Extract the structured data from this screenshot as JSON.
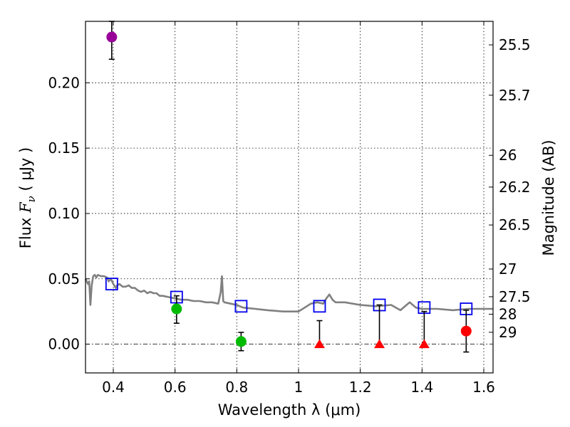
{
  "chart_data": {
    "type": "scatter",
    "xlabel": "Wavelength  λ (μm)",
    "ylabel_prefix": "Flux  ",
    "ylabel_symbol": "F",
    "ylabel_subscript": "ν",
    "ylabel_unit": "  ( μJy )",
    "y2label": "Magnitude (AB)",
    "xlim": [
      0.31,
      1.63
    ],
    "ylim": [
      -0.022,
      0.247
    ],
    "xticks": [
      0.4,
      0.6,
      0.8,
      1.0,
      1.2,
      1.4,
      1.6
    ],
    "xtick_labels": [
      "0.4",
      "0.6",
      "0.8",
      "1",
      "1.2",
      "1.4",
      "1.6"
    ],
    "yticks": [
      0.0,
      0.05,
      0.1,
      0.15,
      0.2
    ],
    "ytick_labels": [
      "0.00",
      "0.05",
      "0.10",
      "0.15",
      "0.20"
    ],
    "magnitude_ticks": [
      {
        "label": "25.5",
        "flux": 0.229
      },
      {
        "label": "25.7",
        "flux": 0.1905
      },
      {
        "label": "26",
        "flux": 0.1445
      },
      {
        "label": "26.2",
        "flux": 0.1202
      },
      {
        "label": "26.5",
        "flux": 0.0912
      },
      {
        "label": "27",
        "flux": 0.0575
      },
      {
        "label": "27.5",
        "flux": 0.0363
      },
      {
        "label": "28",
        "flux": 0.0229
      },
      {
        "label": "29",
        "flux": 0.0091
      }
    ],
    "grid": true,
    "series": [
      {
        "name": "model_spectrum",
        "kind": "line",
        "color": "#808080",
        "x": [
          0.31,
          0.318,
          0.322,
          0.326,
          0.33,
          0.335,
          0.34,
          0.345,
          0.35,
          0.36,
          0.37,
          0.38,
          0.385,
          0.392,
          0.4,
          0.408,
          0.412,
          0.42,
          0.43,
          0.44,
          0.45,
          0.46,
          0.47,
          0.48,
          0.49,
          0.5,
          0.51,
          0.52,
          0.53,
          0.54,
          0.55,
          0.56,
          0.58,
          0.6,
          0.62,
          0.64,
          0.66,
          0.68,
          0.7,
          0.72,
          0.74,
          0.748,
          0.752,
          0.756,
          0.76,
          0.78,
          0.8,
          0.82,
          0.86,
          0.9,
          0.95,
          1.0,
          1.02,
          1.04,
          1.06,
          1.08,
          1.09,
          1.1,
          1.11,
          1.12,
          1.15,
          1.2,
          1.25,
          1.3,
          1.33,
          1.36,
          1.38,
          1.4,
          1.45,
          1.5,
          1.55,
          1.6,
          1.63
        ],
        "y": [
          0.05,
          0.046,
          0.048,
          0.03,
          0.045,
          0.052,
          0.053,
          0.051,
          0.053,
          0.052,
          0.052,
          0.051,
          0.048,
          0.05,
          0.046,
          0.043,
          0.045,
          0.046,
          0.044,
          0.044,
          0.045,
          0.043,
          0.043,
          0.041,
          0.04,
          0.041,
          0.039,
          0.04,
          0.039,
          0.039,
          0.037,
          0.037,
          0.036,
          0.035,
          0.034,
          0.034,
          0.033,
          0.033,
          0.032,
          0.032,
          0.031,
          0.04,
          0.052,
          0.033,
          0.032,
          0.031,
          0.03,
          0.028,
          0.027,
          0.026,
          0.025,
          0.025,
          0.028,
          0.031,
          0.032,
          0.031,
          0.035,
          0.038,
          0.034,
          0.032,
          0.032,
          0.03,
          0.029,
          0.03,
          0.026,
          0.032,
          0.028,
          0.027,
          0.027,
          0.026,
          0.027,
          0.027,
          0.027
        ]
      },
      {
        "name": "model_photometry",
        "kind": "open_square",
        "color": "#0000ee",
        "x": [
          0.395,
          0.605,
          0.814,
          1.068,
          1.262,
          1.407,
          1.543
        ],
        "y": [
          0.046,
          0.036,
          0.029,
          0.029,
          0.03,
          0.028,
          0.027
        ]
      },
      {
        "name": "detection_purple",
        "kind": "circle",
        "color": "#990099",
        "x": [
          0.395
        ],
        "y": [
          0.235
        ],
        "err": [
          [
            0.218,
            0.247
          ]
        ]
      },
      {
        "name": "detections_green",
        "kind": "circle",
        "color": "#00bb00",
        "x": [
          0.605,
          0.814
        ],
        "y": [
          0.027,
          0.002
        ],
        "err": [
          [
            0.016,
            0.037
          ],
          [
            -0.005,
            0.009
          ]
        ]
      },
      {
        "name": "upper_limits_red",
        "kind": "triangle",
        "color": "#ff0000",
        "x": [
          1.068,
          1.262,
          1.407
        ],
        "y": [
          0.0,
          0.0,
          0.0
        ],
        "err": [
          [
            0.0,
            0.018
          ],
          [
            0.0,
            0.03
          ],
          [
            0.0,
            0.025
          ]
        ]
      },
      {
        "name": "detection_red",
        "kind": "circle",
        "color": "#ff0000",
        "x": [
          1.543
        ],
        "y": [
          0.01
        ],
        "err": [
          [
            -0.006,
            0.026
          ]
        ]
      }
    ]
  }
}
